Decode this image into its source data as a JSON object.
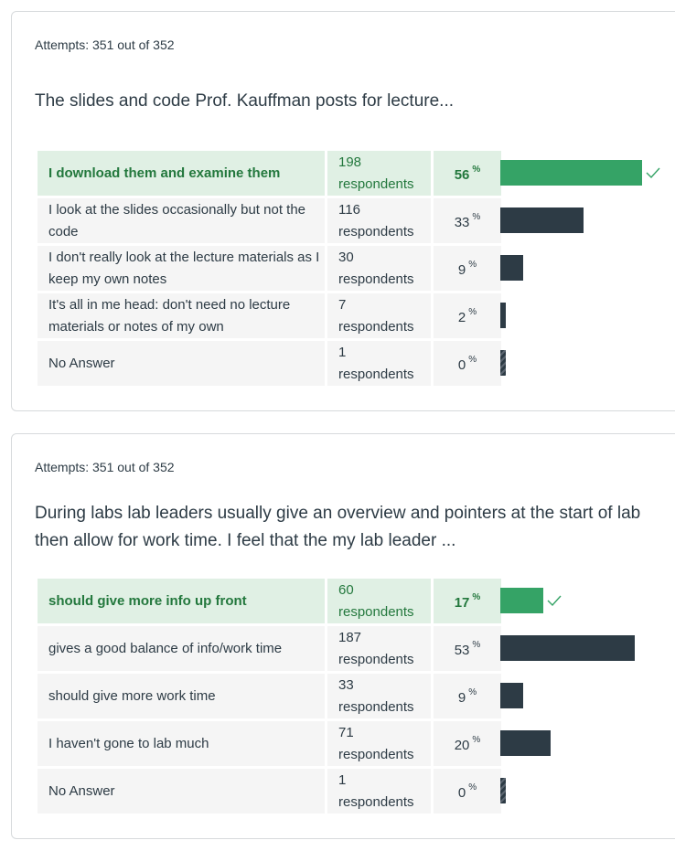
{
  "questions": [
    {
      "attempts": "Attempts: 351 out of 352",
      "text": "The slides and code Prof. Kauffman posts for lecture...",
      "answers": [
        {
          "label": "I download them and examine them",
          "count": "198",
          "unit": "respondents",
          "pct": "56",
          "pct_value": 0.56,
          "correct": true
        },
        {
          "label": "I look at the slides occasionally but not the code",
          "count": "116",
          "unit": "respondents",
          "pct": "33",
          "pct_value": 0.33,
          "correct": false
        },
        {
          "label": "I don't really look at the lecture materials as I keep my own notes",
          "count": "30",
          "unit": "respondents",
          "pct": "9",
          "pct_value": 0.09,
          "correct": false
        },
        {
          "label": "It's all in me head: don't need no lecture materials or notes of my own",
          "count": "7",
          "unit": "respondents",
          "pct": "2",
          "pct_value": 0.02,
          "correct": false
        },
        {
          "label": "No Answer",
          "count": "1",
          "unit": "respondents",
          "pct": "0",
          "pct_value": 0.0,
          "correct": false
        }
      ]
    },
    {
      "attempts": "Attempts: 351 out of 352",
      "text": "During labs lab leaders usually give an overview and pointers at the start of lab then allow for work time. I feel that the my lab leader ...",
      "answers": [
        {
          "label": "should give more info up front",
          "count": "60",
          "unit": "respondents",
          "pct": "17",
          "pct_value": 0.17,
          "correct": true
        },
        {
          "label": "gives a good balance of info/work time",
          "count": "187",
          "unit": "respondents",
          "pct": "53",
          "pct_value": 0.53,
          "correct": false
        },
        {
          "label": "should give more work time",
          "count": "33",
          "unit": "respondents",
          "pct": "9",
          "pct_value": 0.09,
          "correct": false
        },
        {
          "label": "I haven't gone to lab much",
          "count": "71",
          "unit": "respondents",
          "pct": "20",
          "pct_value": 0.2,
          "correct": false
        },
        {
          "label": "No Answer",
          "count": "1",
          "unit": "respondents",
          "pct": "0",
          "pct_value": 0.0,
          "correct": false
        }
      ]
    }
  ],
  "pct_symbol": "%",
  "colors": {
    "correct": "#35a366",
    "bar": "#2d3b45",
    "correct_row": "#e0f0e4",
    "row": "#f5f5f5"
  },
  "icons": {
    "correct_marker": "check-icon"
  }
}
